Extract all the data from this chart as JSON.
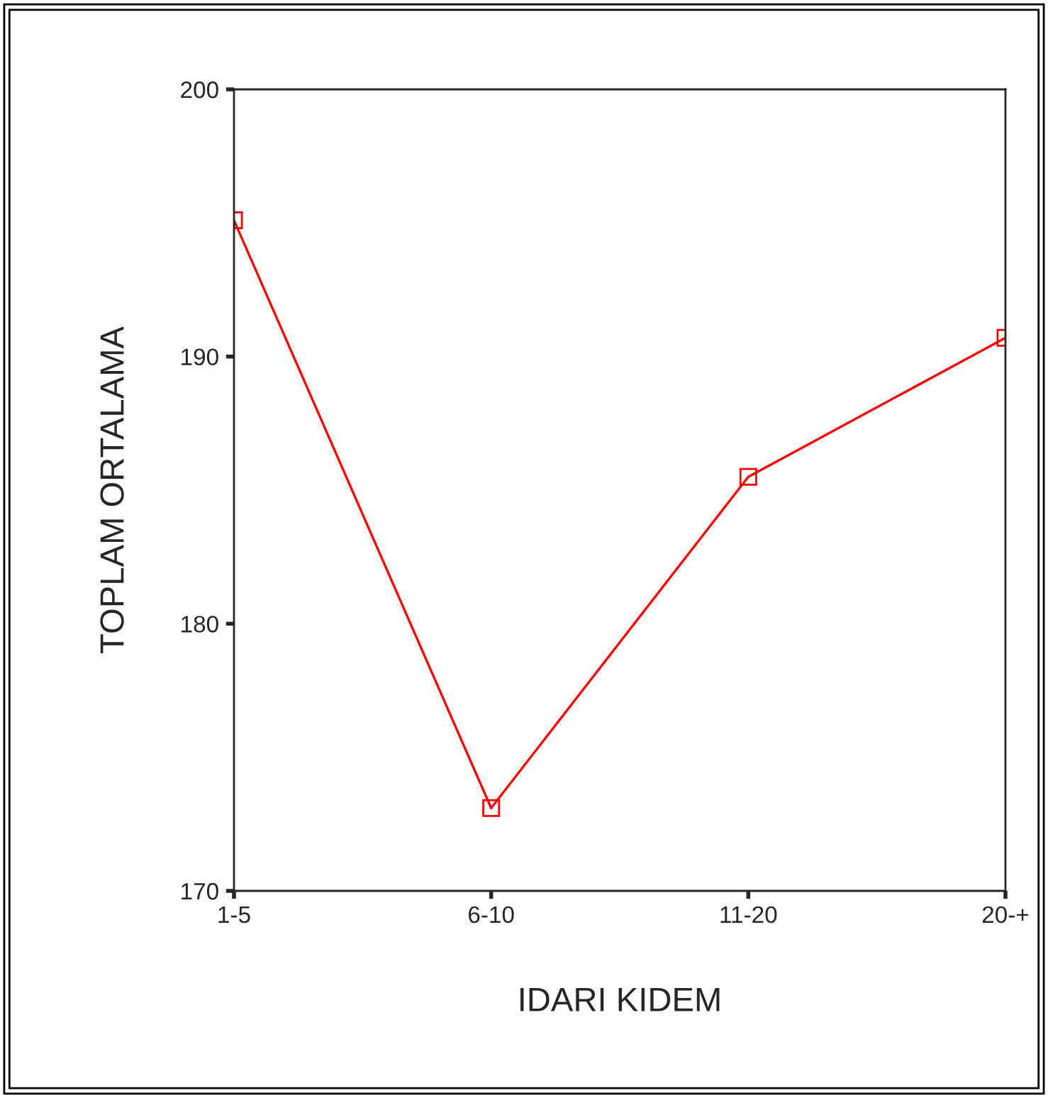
{
  "chart_data": {
    "type": "line",
    "xlabel": "IDARI KIDEM",
    "ylabel": "TOPLAM ORTALAMA",
    "categories": [
      "1-5",
      "6-10",
      "11-20",
      "20-+"
    ],
    "series": [
      {
        "color": "#ff0000",
        "values": [
          195.1,
          173.1,
          185.5,
          190.7
        ]
      }
    ],
    "ylim": [
      170,
      200
    ],
    "yticks": [
      170,
      180,
      190,
      200
    ],
    "grid": false,
    "legend": false,
    "marker": "square",
    "line_style": "solid"
  }
}
